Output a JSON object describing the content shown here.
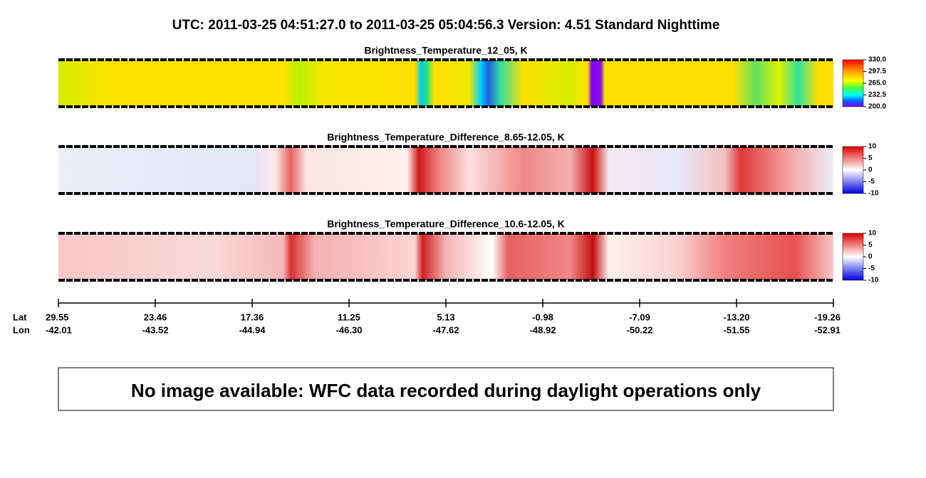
{
  "header": {
    "title": "UTC:  2011-03-25   04:51:27.0  to  2011-03-25   05:04:56.3    Version: 4.51  Standard Nighttime"
  },
  "panels": [
    {
      "title": "Brightness_Temperature_12_05, K",
      "colorbar_ticks": [
        "330.0",
        "297.5",
        "265.0",
        "232.5",
        "200.0"
      ]
    },
    {
      "title": "Brightness_Temperature_Difference_8.65-12.05, K",
      "colorbar_ticks": [
        "10",
        "5",
        "0",
        "-5",
        "-10"
      ]
    },
    {
      "title": "Brightness_Temperature_Difference_10.6-12.05, K",
      "colorbar_ticks": [
        "10",
        "5",
        "0",
        "-5",
        "-10"
      ]
    }
  ],
  "axis": {
    "row_labels": [
      "Lat",
      "Lon"
    ],
    "lat": [
      "29.55",
      "23.46",
      "17.36",
      "11.25",
      "5.13",
      "-0.98",
      "-7.09",
      "-13.20",
      "-19.26"
    ],
    "lon": [
      "-42.01",
      "-43.52",
      "-44.94",
      "-46.30",
      "-47.62",
      "-48.92",
      "-50.22",
      "-51.55",
      "-52.91"
    ]
  },
  "notice": "No image available: WFC data recorded during daylight operations only"
}
